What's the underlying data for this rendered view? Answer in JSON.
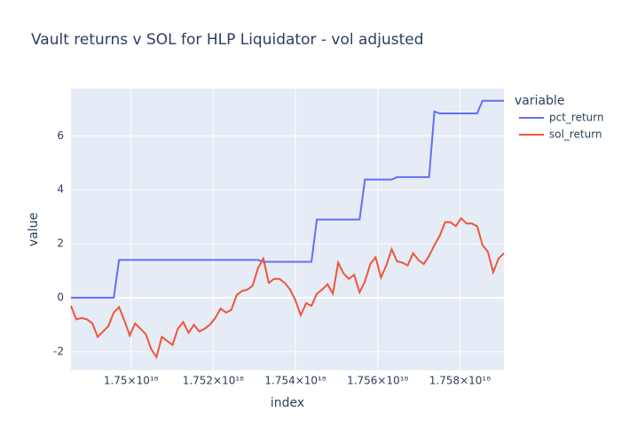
{
  "chart_data": {
    "type": "line",
    "title": "Vault returns v SOL for HLP Liquidator - vol adjusted",
    "x_label": "index",
    "y_label": "value",
    "legend_title": "variable",
    "x": [
      1.74854e+18,
      1.74867e+18,
      1.7488e+18,
      1.74893e+18,
      1.74906e+18,
      1.74919e+18,
      1.74932e+18,
      1.74945e+18,
      1.74958e+18,
      1.74971e+18,
      1.74984e+18,
      1.74997e+18,
      1.7501e+18,
      1.75023e+18,
      1.75036e+18,
      1.75049e+18,
      1.75062e+18,
      1.75075e+18,
      1.75088e+18,
      1.75101e+18,
      1.75114e+18,
      1.75127e+18,
      1.7514e+18,
      1.75153e+18,
      1.75166e+18,
      1.75179e+18,
      1.75192e+18,
      1.75205e+18,
      1.75218e+18,
      1.75231e+18,
      1.75244e+18,
      1.75257e+18,
      1.7527e+18,
      1.75283e+18,
      1.75296e+18,
      1.75309e+18,
      1.75322e+18,
      1.75335e+18,
      1.75348e+18,
      1.75361e+18,
      1.75374e+18,
      1.75387e+18,
      1.754e+18,
      1.75413e+18,
      1.75426e+18,
      1.75439e+18,
      1.75452e+18,
      1.75465e+18,
      1.75478e+18,
      1.75491e+18,
      1.75504e+18,
      1.75517e+18,
      1.7553e+18,
      1.75543e+18,
      1.75556e+18,
      1.75569e+18,
      1.75582e+18,
      1.75595e+18,
      1.75608e+18,
      1.75621e+18,
      1.75634e+18,
      1.75647e+18,
      1.7566e+18,
      1.75673e+18,
      1.75686e+18,
      1.75699e+18,
      1.75712e+18,
      1.75725e+18,
      1.75738e+18,
      1.75751e+18,
      1.75764e+18,
      1.75777e+18,
      1.7579e+18,
      1.75803e+18,
      1.75816e+18,
      1.75829e+18,
      1.75842e+18,
      1.75855e+18,
      1.75868e+18,
      1.75881e+18,
      1.75894e+18,
      1.75907e+18
    ],
    "series": [
      {
        "name": "pct_return",
        "color": "#636efa",
        "values": [
          0,
          0,
          0,
          0,
          0,
          0,
          0,
          0,
          0,
          1.4,
          1.4,
          1.4,
          1.4,
          1.4,
          1.4,
          1.4,
          1.4,
          1.4,
          1.4,
          1.4,
          1.4,
          1.4,
          1.4,
          1.4,
          1.4,
          1.4,
          1.4,
          1.4,
          1.4,
          1.4,
          1.4,
          1.4,
          1.4,
          1.4,
          1.4,
          1.4,
          1.33,
          1.33,
          1.33,
          1.33,
          1.33,
          1.33,
          1.33,
          1.33,
          1.33,
          1.33,
          2.9,
          2.9,
          2.9,
          2.9,
          2.9,
          2.9,
          2.9,
          2.9,
          2.9,
          4.38,
          4.38,
          4.38,
          4.38,
          4.38,
          4.38,
          4.47,
          4.47,
          4.47,
          4.47,
          4.47,
          4.47,
          4.47,
          6.9,
          6.83,
          6.83,
          6.83,
          6.83,
          6.83,
          6.83,
          6.83,
          6.83,
          7.3,
          7.3,
          7.3,
          7.3,
          7.3
        ]
      },
      {
        "name": "sol_return",
        "color": "#ef553b",
        "values": [
          -0.3,
          -0.8,
          -0.75,
          -0.8,
          -0.95,
          -1.45,
          -1.25,
          -1.05,
          -0.55,
          -0.35,
          -0.85,
          -1.4,
          -0.95,
          -1.15,
          -1.35,
          -1.9,
          -2.2,
          -1.45,
          -1.6,
          -1.75,
          -1.15,
          -0.9,
          -1.3,
          -1.0,
          -1.25,
          -1.15,
          -1.0,
          -0.75,
          -0.4,
          -0.55,
          -0.45,
          0.1,
          0.25,
          0.3,
          0.45,
          1.1,
          1.45,
          0.55,
          0.7,
          0.7,
          0.55,
          0.3,
          -0.1,
          -0.65,
          -0.2,
          -0.3,
          0.15,
          0.3,
          0.5,
          0.15,
          1.3,
          0.9,
          0.7,
          0.85,
          0.2,
          0.6,
          1.25,
          1.5,
          0.75,
          1.2,
          1.8,
          1.35,
          1.3,
          1.2,
          1.65,
          1.4,
          1.25,
          1.55,
          1.95,
          2.3,
          2.8,
          2.8,
          2.65,
          2.95,
          2.75,
          2.75,
          2.65,
          1.95,
          1.7,
          0.95,
          1.45,
          1.65
        ]
      }
    ],
    "xlim": [
      1.74854e+18,
      1.75907e+18
    ],
    "ylim": [
      -2.69,
      7.75
    ],
    "xticks": [
      {
        "value": 1.75e+18,
        "label": "1.75×10¹⁸"
      },
      {
        "value": 1.752e+18,
        "label": "1.752×10¹⁸"
      },
      {
        "value": 1.754e+18,
        "label": "1.754×10¹⁸"
      },
      {
        "value": 1.756e+18,
        "label": "1.756×10¹⁸"
      },
      {
        "value": 1.758e+18,
        "label": "1.758×10¹⁸"
      }
    ],
    "yticks": [
      -2,
      0,
      2,
      4,
      6
    ],
    "grid": true
  }
}
